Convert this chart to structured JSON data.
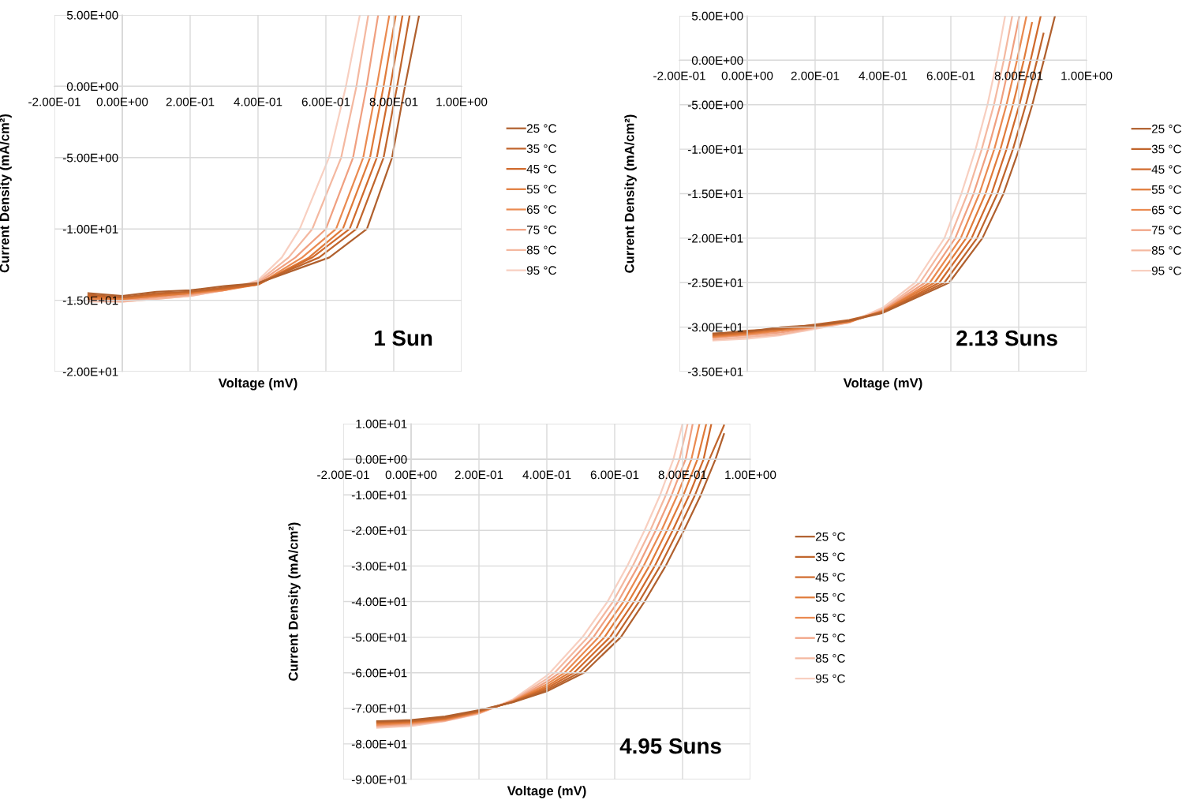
{
  "chart_data": [
    {
      "type": "line",
      "xlabel": "Voltage (mV)",
      "ylabel": "Current Density (mA/cm²)",
      "annotations": [
        "1 Sun"
      ],
      "xlim": [
        -0.2,
        1.0
      ],
      "xticks": [
        {
          "value": -0.2,
          "label": "-2.00E-01"
        },
        {
          "value": 0,
          "label": "0.00E+00"
        },
        {
          "value": 0.2,
          "label": "2.00E-01"
        },
        {
          "value": 0.4,
          "label": "4.00E-01"
        },
        {
          "value": 0.6,
          "label": "6.00E-01"
        },
        {
          "value": 0.8,
          "label": "8.00E-01"
        },
        {
          "value": 1.0,
          "label": "1.00E+00"
        }
      ],
      "ylim": [
        -20,
        5
      ],
      "yticks": [
        {
          "value": 5,
          "label": "5.00E+00"
        },
        {
          "value": 0,
          "label": "0.00E+00"
        },
        {
          "value": -5,
          "label": "-5.00E+00"
        },
        {
          "value": -10,
          "label": "-1.00E+01"
        },
        {
          "value": -15,
          "label": "-1.50E+01"
        },
        {
          "value": -20,
          "label": "-2.00E+01"
        }
      ],
      "grid": true,
      "legend": "right",
      "series": [
        {
          "name": "25 °C",
          "color": "#b0602e",
          "x": [
            -0.1,
            0,
            0.1,
            0.2,
            0.3,
            0.4,
            0.61,
            0.721,
            0.795,
            0.833,
            0.874
          ],
          "values": [
            -14.5,
            -14.7,
            -14.4,
            -14.3,
            -14.0,
            -13.8,
            -12,
            -10,
            -5,
            0,
            4.9
          ]
        },
        {
          "name": "35 °C",
          "color": "#c0652c",
          "x": [
            -0.1,
            0,
            0.1,
            0.2,
            0.3,
            0.4,
            0.58,
            0.69,
            0.77,
            0.81,
            0.847
          ],
          "values": [
            -14.6,
            -14.8,
            -14.5,
            -14.4,
            -14.1,
            -13.8,
            -12,
            -10,
            -5,
            0,
            5
          ]
        },
        {
          "name": "45 °C",
          "color": "#d06a2c",
          "x": [
            -0.1,
            0,
            0.1,
            0.2,
            0.3,
            0.4,
            0.56,
            0.67,
            0.75,
            0.79,
            0.826
          ],
          "values": [
            -14.7,
            -14.8,
            -14.6,
            -14.4,
            -14.2,
            -13.9,
            -12,
            -10,
            -5,
            0,
            5
          ]
        },
        {
          "name": "55 °C",
          "color": "#e07b3a",
          "x": [
            -0.1,
            0,
            0.1,
            0.2,
            0.3,
            0.4,
            0.55,
            0.65,
            0.73,
            0.77,
            0.806
          ],
          "values": [
            -14.8,
            -14.9,
            -14.7,
            -14.5,
            -14.2,
            -13.9,
            -12,
            -10,
            -5,
            0,
            5
          ]
        },
        {
          "name": "65 °C",
          "color": "#ea8a50",
          "x": [
            -0.1,
            0,
            0.1,
            0.2,
            0.3,
            0.4,
            0.53,
            0.63,
            0.71,
            0.75,
            0.787
          ],
          "values": [
            -14.9,
            -14.9,
            -14.7,
            -14.5,
            -14.3,
            -13.9,
            -12,
            -10,
            -5,
            0,
            5
          ]
        },
        {
          "name": "75 °C",
          "color": "#f0a080",
          "x": [
            -0.1,
            0,
            0.1,
            0.2,
            0.3,
            0.4,
            0.51,
            0.6,
            0.68,
            0.72,
            0.754
          ],
          "values": [
            -15.0,
            -15.0,
            -14.8,
            -14.6,
            -14.3,
            -13.8,
            -12,
            -10,
            -5,
            0,
            5
          ]
        },
        {
          "name": "85 °C",
          "color": "#f4b8a0",
          "x": [
            -0.1,
            0,
            0.1,
            0.2,
            0.3,
            0.4,
            0.49,
            0.56,
            0.645,
            0.69,
            0.725
          ],
          "values": [
            -15.0,
            -15.1,
            -14.9,
            -14.7,
            -14.3,
            -13.7,
            -12,
            -10,
            -5,
            0,
            5
          ]
        },
        {
          "name": "95 °C",
          "color": "#f8cfc0",
          "x": [
            -0.1,
            0,
            0.1,
            0.2,
            0.3,
            0.4,
            0.47,
            0.523,
            0.609,
            0.659,
            0.7
          ],
          "values": [
            -15.1,
            -15.1,
            -14.9,
            -14.7,
            -14.3,
            -13.6,
            -12,
            -10,
            -5,
            0,
            5
          ]
        }
      ]
    },
    {
      "type": "line",
      "xlabel": "Voltage (mV)",
      "ylabel": "Current Density (mA/cm²)",
      "annotations": [
        "2.13 Suns"
      ],
      "xlim": [
        -0.2,
        1.0
      ],
      "xticks": [
        {
          "value": -0.2,
          "label": "-2.00E-01"
        },
        {
          "value": 0,
          "label": "0.00E+00"
        },
        {
          "value": 0.2,
          "label": "2.00E-01"
        },
        {
          "value": 0.4,
          "label": "4.00E-01"
        },
        {
          "value": 0.6,
          "label": "6.00E-01"
        },
        {
          "value": 0.8,
          "label": "8.00E-01"
        },
        {
          "value": 1.0,
          "label": "1.00E+00"
        }
      ],
      "ylim": [
        -35,
        5
      ],
      "yticks": [
        {
          "value": 5,
          "label": "5.00E+00"
        },
        {
          "value": 0,
          "label": "0.00E+00"
        },
        {
          "value": -5,
          "label": "-5.00E+00"
        },
        {
          "value": -10,
          "label": "-1.00E+01"
        },
        {
          "value": -15,
          "label": "-1.50E+01"
        },
        {
          "value": -20,
          "label": "-2.00E+01"
        },
        {
          "value": -25,
          "label": "-2.50E+01"
        },
        {
          "value": -30,
          "label": "-3.00E+01"
        },
        {
          "value": -35,
          "label": "-3.50E+01"
        }
      ],
      "grid": true,
      "legend": "right",
      "series": [
        {
          "name": "25 °C",
          "color": "#b0602e",
          "x": [
            -0.1,
            0,
            0.1,
            0.2,
            0.3,
            0.4,
            0.595,
            0.693,
            0.755,
            0.801,
            0.84,
            0.874,
            0.907
          ],
          "values": [
            -30.7,
            -30.5,
            -30.0,
            -29.8,
            -29.3,
            -28.4,
            -25,
            -20,
            -15,
            -10,
            -5,
            0,
            5
          ]
        },
        {
          "name": "35 °C",
          "color": "#c0652c",
          "x": [
            -0.1,
            0,
            0.1,
            0.2,
            0.3,
            0.4,
            0.581,
            0.677,
            0.737,
            0.783,
            0.821,
            0.854,
            0.873
          ],
          "values": [
            -30.8,
            -30.4,
            -30.2,
            -29.7,
            -29.2,
            -28.3,
            -25,
            -20,
            -15,
            -10,
            -5,
            0,
            3.0
          ]
        },
        {
          "name": "45 °C",
          "color": "#d06a2c",
          "x": [
            -0.1,
            0,
            0.1,
            0.2,
            0.3,
            0.4,
            0.566,
            0.661,
            0.72,
            0.764,
            0.802,
            0.835,
            0.865
          ],
          "values": [
            -30.9,
            -30.6,
            -30.1,
            -29.9,
            -29.3,
            -28.3,
            -25,
            -20,
            -15,
            -10,
            -5,
            0,
            5
          ]
        },
        {
          "name": "55 °C",
          "color": "#e07b3a",
          "x": [
            -0.1,
            0,
            0.1,
            0.2,
            0.3,
            0.4,
            0.552,
            0.645,
            0.702,
            0.746,
            0.783,
            0.815,
            0.839
          ],
          "values": [
            -31.0,
            -30.7,
            -30.3,
            -29.9,
            -29.4,
            -28.2,
            -25,
            -20,
            -15,
            -10,
            -5,
            0,
            4.2
          ]
        },
        {
          "name": "65 °C",
          "color": "#ea8a50",
          "x": [
            -0.1,
            0,
            0.1,
            0.2,
            0.3,
            0.4,
            0.538,
            0.629,
            0.684,
            0.728,
            0.764,
            0.795,
            0.823
          ],
          "values": [
            -31.1,
            -30.8,
            -30.4,
            -30.0,
            -29.4,
            -28.2,
            -25,
            -20,
            -15,
            -10,
            -5,
            0,
            5
          ]
        },
        {
          "name": "75 °C",
          "color": "#f0a080",
          "x": [
            -0.1,
            0,
            0.1,
            0.2,
            0.3,
            0.4,
            0.524,
            0.613,
            0.667,
            0.71,
            0.746,
            0.775,
            0.802
          ],
          "values": [
            -31.2,
            -30.9,
            -30.6,
            -30.0,
            -29.4,
            -28.1,
            -25,
            -20,
            -15,
            -10,
            -5,
            0,
            5
          ]
        },
        {
          "name": "85 °C",
          "color": "#f4b8a0",
          "x": [
            -0.1,
            0,
            0.1,
            0.2,
            0.3,
            0.4,
            0.509,
            0.597,
            0.649,
            0.691,
            0.727,
            0.756,
            0.781
          ],
          "values": [
            -31.4,
            -31.1,
            -30.8,
            -30.1,
            -29.5,
            -28.0,
            -25,
            -20,
            -15,
            -10,
            -5,
            0,
            5
          ]
        },
        {
          "name": "95 °C",
          "color": "#f8cfc0",
          "x": [
            -0.1,
            0,
            0.1,
            0.2,
            0.3,
            0.4,
            0.495,
            0.581,
            0.631,
            0.673,
            0.708,
            0.736,
            0.76
          ],
          "values": [
            -31.5,
            -31.3,
            -30.9,
            -30.2,
            -29.5,
            -27.8,
            -25,
            -20,
            -15,
            -10,
            -5,
            0,
            5
          ]
        }
      ]
    },
    {
      "type": "line",
      "xlabel": "Voltage (mV)",
      "ylabel": "Current Density (mA/cm²)",
      "annotations": [
        "4.95 Suns"
      ],
      "xlim": [
        -0.2,
        1.0
      ],
      "xticks": [
        {
          "value": -0.2,
          "label": "-2.00E-01"
        },
        {
          "value": 0,
          "label": "0.00E+00"
        },
        {
          "value": 0.2,
          "label": "2.00E-01"
        },
        {
          "value": 0.4,
          "label": "4.00E-01"
        },
        {
          "value": 0.6,
          "label": "6.00E-01"
        },
        {
          "value": 0.8,
          "label": "8.00E-01"
        },
        {
          "value": 1.0,
          "label": "1.00E+00"
        }
      ],
      "ylim": [
        -90,
        10
      ],
      "yticks": [
        {
          "value": 10,
          "label": "1.00E+01"
        },
        {
          "value": 0,
          "label": "0.00E+00"
        },
        {
          "value": -10,
          "label": "-1.00E+01"
        },
        {
          "value": -20,
          "label": "-2.00E+01"
        },
        {
          "value": -30,
          "label": "-3.00E+01"
        },
        {
          "value": -40,
          "label": "-4.00E+01"
        },
        {
          "value": -50,
          "label": "-5.00E+01"
        },
        {
          "value": -60,
          "label": "-6.00E+01"
        },
        {
          "value": -70,
          "label": "-7.00E+01"
        },
        {
          "value": -80,
          "label": "-8.00E+01"
        },
        {
          "value": -90,
          "label": "-9.00E+01"
        }
      ],
      "grid": true,
      "legend": "right",
      "series": [
        {
          "name": "25 °C",
          "color": "#b0602e",
          "x": [
            -0.1,
            0,
            0.1,
            0.2,
            0.3,
            0.4,
            0.509,
            0.618,
            0.688,
            0.75,
            0.804,
            0.854,
            0.897,
            0.922
          ],
          "values": [
            -73.6,
            -73.3,
            -72.3,
            -70.5,
            -68.3,
            -65.2,
            -60,
            -50,
            -40,
            -30,
            -20,
            -10,
            0,
            7.1
          ]
        },
        {
          "name": "35 °C",
          "color": "#c0652c",
          "x": [
            -0.1,
            0,
            0.1,
            0.2,
            0.3,
            0.4,
            0.495,
            0.602,
            0.672,
            0.734,
            0.787,
            0.837,
            0.879,
            0.922
          ],
          "values": [
            -73.8,
            -73.5,
            -72.6,
            -70.7,
            -68.2,
            -64.8,
            -60,
            -50,
            -40,
            -30,
            -20,
            -10,
            0,
            9.5
          ]
        },
        {
          "name": "45 °C",
          "color": "#d06a2c",
          "x": [
            -0.1,
            0,
            0.1,
            0.2,
            0.3,
            0.4,
            0.48,
            0.586,
            0.657,
            0.718,
            0.771,
            0.82,
            0.862,
            0.885
          ],
          "values": [
            -74.0,
            -73.7,
            -72.8,
            -70.8,
            -68.2,
            -64.3,
            -60,
            -50,
            -40,
            -30,
            -20,
            -10,
            0,
            10
          ]
        },
        {
          "name": "55 °C",
          "color": "#e07b3a",
          "x": [
            -0.1,
            0,
            0.1,
            0.2,
            0.3,
            0.4,
            0.466,
            0.57,
            0.641,
            0.702,
            0.754,
            0.803,
            0.844,
            0.87
          ],
          "values": [
            -74.3,
            -73.9,
            -73.0,
            -71.0,
            -68.1,
            -63.8,
            -60,
            -50,
            -40,
            -30,
            -20,
            -10,
            0,
            10
          ]
        },
        {
          "name": "65 °C",
          "color": "#ea8a50",
          "x": [
            -0.1,
            0,
            0.1,
            0.2,
            0.3,
            0.4,
            0.452,
            0.553,
            0.626,
            0.685,
            0.738,
            0.785,
            0.826,
            0.85
          ],
          "values": [
            -74.6,
            -74.1,
            -73.2,
            -71.1,
            -68.0,
            -63.2,
            -60,
            -50,
            -40,
            -30,
            -20,
            -10,
            0,
            10
          ]
        },
        {
          "name": "75 °C",
          "color": "#f0a080",
          "x": [
            -0.1,
            0,
            0.1,
            0.2,
            0.3,
            0.4,
            0.438,
            0.537,
            0.61,
            0.669,
            0.721,
            0.768,
            0.809,
            0.83
          ],
          "values": [
            -74.9,
            -74.4,
            -73.4,
            -71.3,
            -67.9,
            -62.5,
            -60,
            -50,
            -40,
            -30,
            -20,
            -10,
            0,
            10
          ]
        },
        {
          "name": "85 °C",
          "color": "#f4b8a0",
          "x": [
            -0.1,
            0,
            0.1,
            0.2,
            0.3,
            0.4,
            0.423,
            0.521,
            0.595,
            0.653,
            0.705,
            0.751,
            0.791,
            0.815
          ],
          "values": [
            -75.2,
            -74.7,
            -73.5,
            -71.4,
            -67.7,
            -61.7,
            -60,
            -50,
            -40,
            -30,
            -20,
            -10,
            0,
            10
          ]
        },
        {
          "name": "95 °C",
          "color": "#f8cfc0",
          "x": [
            -0.1,
            0,
            0.1,
            0.2,
            0.3,
            0.4,
            0.409,
            0.505,
            0.579,
            0.637,
            0.688,
            0.734,
            0.773,
            0.8
          ],
          "values": [
            -75.5,
            -75.0,
            -73.6,
            -71.5,
            -67.5,
            -60.8,
            -60,
            -50,
            -40,
            -30,
            -20,
            -10,
            0,
            10
          ]
        }
      ]
    }
  ]
}
